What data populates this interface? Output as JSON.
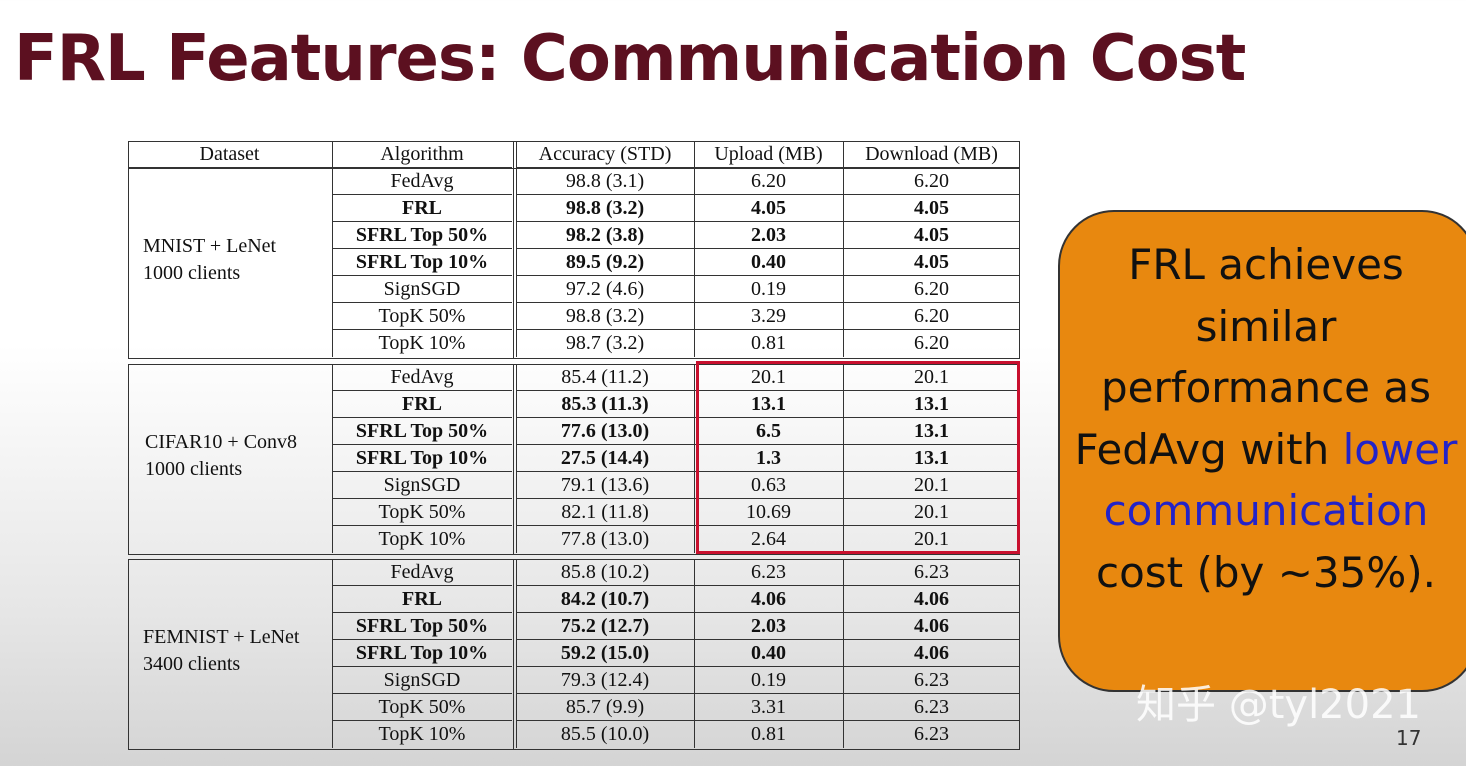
{
  "slide": {
    "title": "FRL Features: Communication Cost",
    "page_number": "17",
    "watermark": "知乎 @tyl2021"
  },
  "table": {
    "headers": [
      "Dataset",
      "Algorithm",
      "Accuracy (STD)",
      "Upload (MB)",
      "Download (MB)"
    ],
    "groups": [
      {
        "dataset": [
          "MNIST + LeNet",
          "1000 clients"
        ],
        "rows": [
          {
            "algorithm": "FedAvg",
            "accuracy": "98.8 (3.1)",
            "upload": "6.20",
            "download": "6.20",
            "bold": false
          },
          {
            "algorithm": "FRL",
            "accuracy": "98.8 (3.2)",
            "upload": "4.05",
            "download": "4.05",
            "bold": true
          },
          {
            "algorithm": "SFRL Top 50%",
            "accuracy": "98.2 (3.8)",
            "upload": "2.03",
            "download": "4.05",
            "bold": true
          },
          {
            "algorithm": "SFRL Top 10%",
            "accuracy": "89.5 (9.2)",
            "upload": "0.40",
            "download": "4.05",
            "bold": true
          },
          {
            "algorithm": "SignSGD",
            "accuracy": "97.2 (4.6)",
            "upload": "0.19",
            "download": "6.20",
            "bold": false
          },
          {
            "algorithm": "TopK 50%",
            "accuracy": "98.8 (3.2)",
            "upload": "3.29",
            "download": "6.20",
            "bold": false
          },
          {
            "algorithm": "TopK 10%",
            "accuracy": "98.7 (3.2)",
            "upload": "0.81",
            "download": "6.20",
            "bold": false
          }
        ]
      },
      {
        "dataset": [
          "CIFAR10 + Conv8",
          "1000 clients"
        ],
        "rows": [
          {
            "algorithm": "FedAvg",
            "accuracy": "85.4 (11.2)",
            "upload": "20.1",
            "download": "20.1",
            "bold": false
          },
          {
            "algorithm": "FRL",
            "accuracy": "85.3 (11.3)",
            "upload": "13.1",
            "download": "13.1",
            "bold": true
          },
          {
            "algorithm": "SFRL Top 50%",
            "accuracy": "77.6 (13.0)",
            "upload": "6.5",
            "download": "13.1",
            "bold": true
          },
          {
            "algorithm": "SFRL Top 10%",
            "accuracy": "27.5 (14.4)",
            "upload": "1.3",
            "download": "13.1",
            "bold": true
          },
          {
            "algorithm": "SignSGD",
            "accuracy": "79.1 (13.6)",
            "upload": "0.63",
            "download": "20.1",
            "bold": false
          },
          {
            "algorithm": "TopK 50%",
            "accuracy": "82.1 (11.8)",
            "upload": "10.69",
            "download": "20.1",
            "bold": false
          },
          {
            "algorithm": "TopK 10%",
            "accuracy": "77.8 (13.0)",
            "upload": "2.64",
            "download": "20.1",
            "bold": false
          }
        ]
      },
      {
        "dataset": [
          "FEMNIST + LeNet",
          "3400 clients"
        ],
        "rows": [
          {
            "algorithm": "FedAvg",
            "accuracy": "85.8 (10.2)",
            "upload": "6.23",
            "download": "6.23",
            "bold": false
          },
          {
            "algorithm": "FRL",
            "accuracy": "84.2 (10.7)",
            "upload": "4.06",
            "download": "4.06",
            "bold": true
          },
          {
            "algorithm": "SFRL Top 50%",
            "accuracy": "75.2 (12.7)",
            "upload": "2.03",
            "download": "4.06",
            "bold": true
          },
          {
            "algorithm": "SFRL Top 10%",
            "accuracy": "59.2 (15.0)",
            "upload": "0.40",
            "download": "4.06",
            "bold": true
          },
          {
            "algorithm": "SignSGD",
            "accuracy": "79.3 (12.4)",
            "upload": "0.19",
            "download": "6.23",
            "bold": false
          },
          {
            "algorithm": "TopK 50%",
            "accuracy": "85.7 (9.9)",
            "upload": "3.31",
            "download": "6.23",
            "bold": false
          },
          {
            "algorithm": "TopK 10%",
            "accuracy": "85.5 (10.0)",
            "upload": "0.81",
            "download": "6.23",
            "bold": false
          }
        ]
      }
    ],
    "highlight_color": "#c8102e"
  },
  "callout": {
    "text_parts": [
      "FRL achieves similar performance as FedAvg with ",
      "lower communication",
      " cost (by ~35%)."
    ],
    "background_color": "#e8880f",
    "highlight_color": "#2323c8"
  }
}
